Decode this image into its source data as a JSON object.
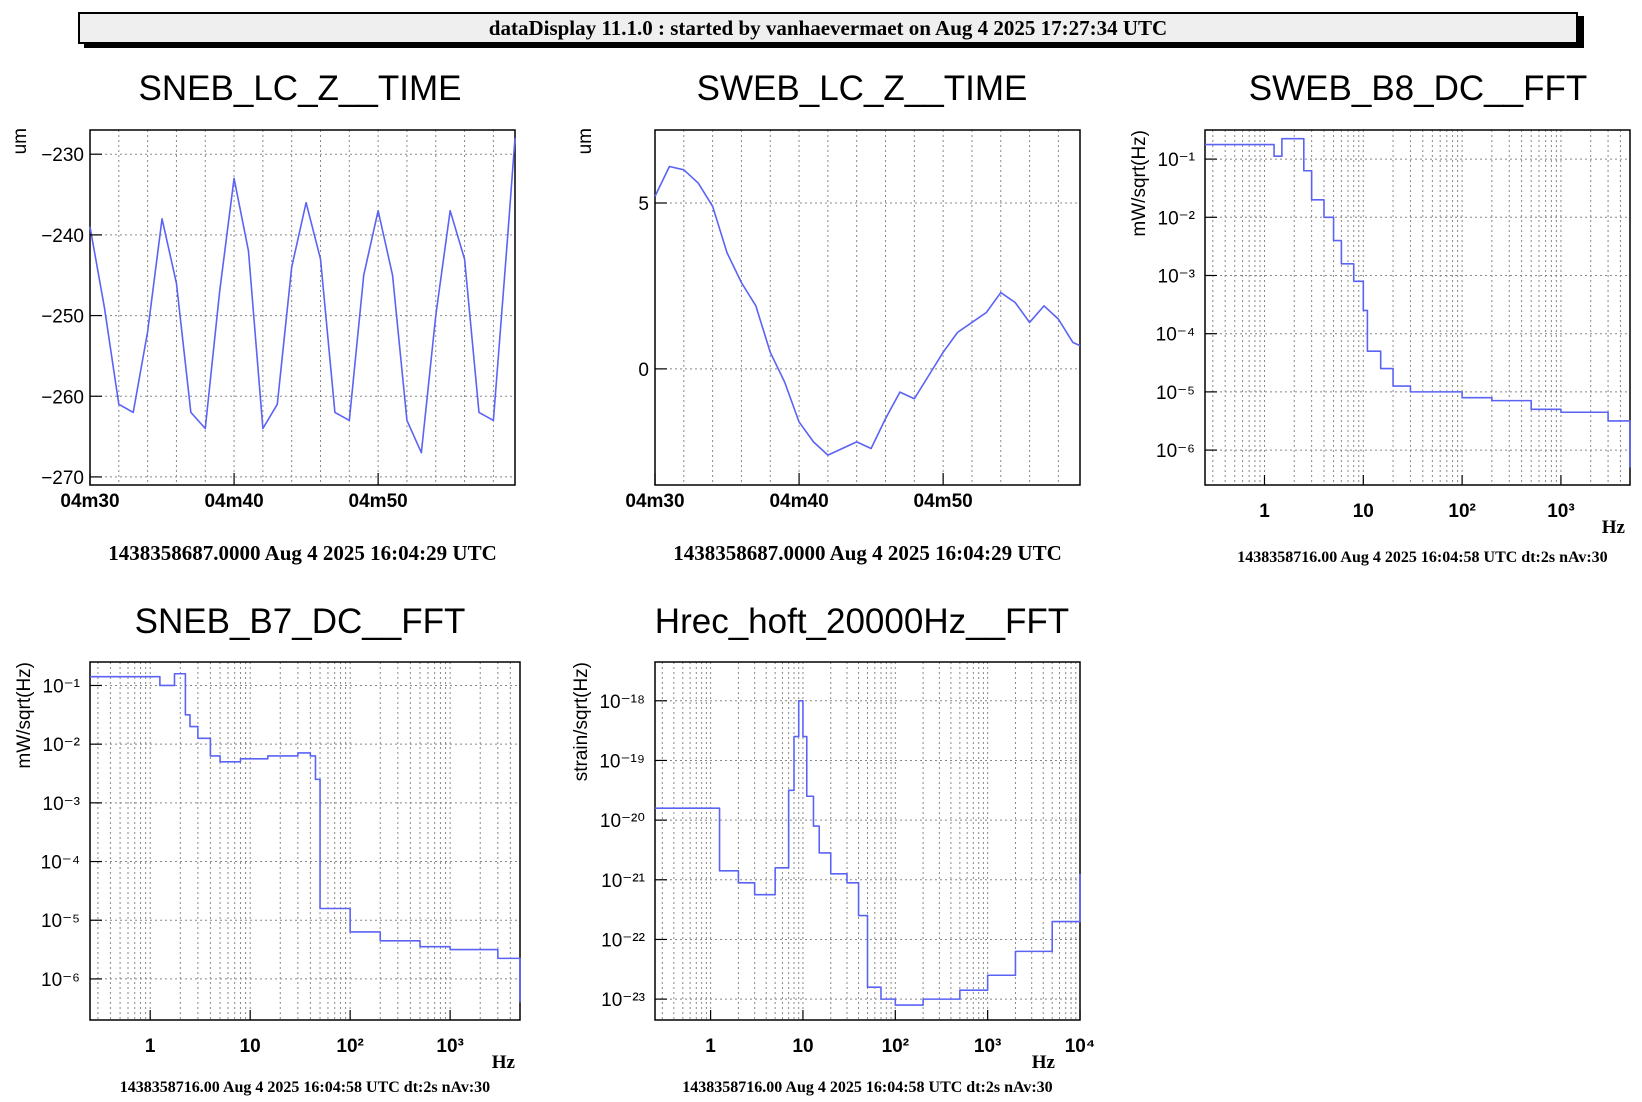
{
  "header": {
    "title": "dataDisplay 11.1.0 : started by vanhaevermaet on Aug  4 2025 17:27:34 UTC"
  },
  "chart_data": [
    {
      "id": "p1",
      "type": "line",
      "title": "SNEB_LC_Z__TIME",
      "ylabel": "um",
      "xlabel": "",
      "x_ticks": [
        "04m30",
        "04m40",
        "04m50"
      ],
      "y_ticks": [
        -230,
        -240,
        -250,
        -260,
        -270
      ],
      "ylim": [
        -271,
        -227
      ],
      "xlim_s": [
        270,
        299.5
      ],
      "footer": "1438358687.0000 Aug 4 2025 16:04:29 UTC",
      "series": [
        {
          "x": [
            270,
            271,
            272,
            273,
            274,
            275,
            276,
            277,
            278,
            279,
            280,
            281,
            282,
            283,
            284,
            285,
            286,
            287,
            288,
            289,
            290,
            291,
            292,
            293,
            294,
            295,
            296,
            297,
            298,
            299,
            299.5
          ],
          "values": [
            -239,
            -249,
            -261,
            -262,
            -252,
            -238,
            -246,
            -262,
            -264,
            -247,
            -233,
            -242,
            -264,
            -261,
            -244,
            -236,
            -243,
            -262,
            -263,
            -245,
            -237,
            -245,
            -263,
            -267,
            -250,
            -237,
            -243,
            -262,
            -263,
            -240,
            -228
          ]
        }
      ]
    },
    {
      "id": "p2",
      "type": "line",
      "title": "SWEB_LC_Z__TIME",
      "ylabel": "um",
      "xlabel": "",
      "x_ticks": [
        "04m30",
        "04m40",
        "04m50"
      ],
      "y_ticks": [
        5,
        0
      ],
      "ylim": [
        -3.5,
        7.2
      ],
      "xlim_s": [
        270,
        299.5
      ],
      "footer": "1438358687.0000 Aug 4 2025 16:04:29 UTC",
      "series": [
        {
          "x": [
            270,
            271,
            272,
            273,
            274,
            275,
            276,
            277,
            278,
            279,
            280,
            281,
            282,
            283,
            284,
            285,
            286,
            287,
            288,
            289,
            290,
            291,
            292,
            293,
            294,
            295,
            296,
            297,
            298,
            299,
            299.5
          ],
          "values": [
            5.2,
            6.1,
            6.0,
            5.6,
            4.9,
            3.5,
            2.6,
            1.9,
            0.5,
            -0.4,
            -1.6,
            -2.2,
            -2.6,
            -2.4,
            -2.2,
            -2.4,
            -1.5,
            -0.7,
            -0.9,
            -0.2,
            0.5,
            1.1,
            1.4,
            1.7,
            2.3,
            2.0,
            1.4,
            1.9,
            1.5,
            0.8,
            0.7
          ]
        }
      ]
    },
    {
      "id": "p3",
      "type": "line",
      "title": "SWEB_B8_DC__FFT",
      "ylabel": "mW/sqrt(Hz)",
      "xlabel": "Hz",
      "log_x": true,
      "log_y": true,
      "x_ticks": [
        1,
        10,
        100,
        1000
      ],
      "y_ticks": [
        -1,
        -2,
        -3,
        -4,
        -5,
        -6
      ],
      "xlim": [
        0.25,
        5000
      ],
      "ylim_exp": [
        -6.6,
        -0.5
      ],
      "footer": "1438358716.00 Aug 4 2025 16:04:58 UTC dt:2s nAv:30",
      "series": [
        {
          "x": [
            0.25,
            0.75,
            1.25,
            1.5,
            2.0,
            2.5,
            3,
            4,
            5,
            6,
            8,
            10,
            11,
            15,
            20,
            30,
            50,
            100,
            200,
            500,
            1000,
            2000,
            3000,
            5000
          ],
          "values": [
            -0.75,
            -0.75,
            -0.95,
            -0.65,
            -0.65,
            -1.2,
            -1.7,
            -2.0,
            -2.4,
            -2.8,
            -3.1,
            -3.6,
            -4.3,
            -4.6,
            -4.9,
            -5.0,
            -5.0,
            -5.1,
            -5.15,
            -5.3,
            -5.35,
            -5.35,
            -5.5,
            -6.3
          ]
        }
      ]
    },
    {
      "id": "p4",
      "type": "line",
      "title": "SNEB_B7_DC__FFT",
      "ylabel": "mW/sqrt(Hz)",
      "xlabel": "Hz",
      "log_x": true,
      "log_y": true,
      "x_ticks": [
        1,
        10,
        100,
        1000
      ],
      "y_ticks": [
        -1,
        -2,
        -3,
        -4,
        -5,
        -6
      ],
      "xlim": [
        0.25,
        5000
      ],
      "ylim_exp": [
        -6.7,
        -0.6
      ],
      "footer": "1438358716.00 Aug 4 2025 16:04:58 UTC dt:2s nAv:30",
      "series": [
        {
          "x": [
            0.25,
            0.75,
            1.25,
            1.75,
            2.25,
            2.5,
            3,
            4,
            5,
            8,
            15,
            30,
            40,
            45,
            50,
            60,
            100,
            200,
            500,
            1000,
            2000,
            3000,
            5000
          ],
          "values": [
            -0.85,
            -0.85,
            -1.0,
            -0.8,
            -1.5,
            -1.7,
            -1.9,
            -2.2,
            -2.3,
            -2.25,
            -2.2,
            -2.15,
            -2.2,
            -2.6,
            -4.8,
            -4.8,
            -5.2,
            -5.35,
            -5.45,
            -5.5,
            -5.5,
            -5.65,
            -6.4
          ]
        }
      ]
    },
    {
      "id": "p5",
      "type": "line",
      "title": "Hrec_hoft_20000Hz__FFT",
      "ylabel": "strain/sqrt(Hz)",
      "xlabel": "Hz",
      "log_x": true,
      "log_y": true,
      "x_ticks": [
        1,
        10,
        100,
        1000,
        10000
      ],
      "y_ticks": [
        -18,
        -19,
        -20,
        -21,
        -22,
        -23
      ],
      "xlim": [
        0.25,
        10000
      ],
      "ylim_exp": [
        -23.35,
        -17.35
      ],
      "footer": "1438358716.00 Aug 4 2025 16:04:58 UTC dt:2s nAv:30",
      "series": [
        {
          "x": [
            0.25,
            0.75,
            1.25,
            2,
            3,
            5,
            7,
            8,
            9,
            10,
            11,
            13,
            15,
            20,
            30,
            40,
            50,
            70,
            100,
            200,
            500,
            1000,
            2000,
            5000,
            10000
          ],
          "values": [
            -19.8,
            -19.8,
            -20.85,
            -21.05,
            -21.25,
            -20.8,
            -19.5,
            -18.6,
            -18.0,
            -18.6,
            -19.6,
            -20.1,
            -20.55,
            -20.9,
            -21.05,
            -21.6,
            -22.8,
            -23.0,
            -23.1,
            -23.0,
            -22.85,
            -22.6,
            -22.2,
            -21.7,
            -20.9
          ]
        }
      ]
    }
  ]
}
